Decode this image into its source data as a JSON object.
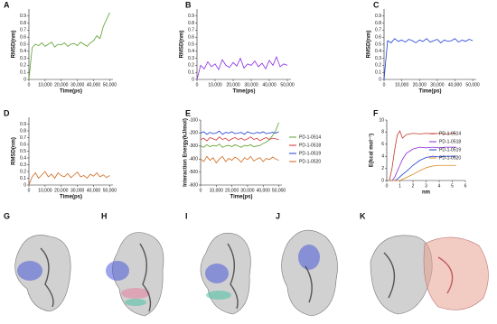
{
  "chart_data": [
    {
      "type": "line",
      "panel": "A",
      "xlabel": "Time(ps)",
      "ylabel": "RMSD(nm)",
      "color": "#5aa02c",
      "x": [
        0,
        2000,
        4000,
        6000,
        8000,
        10000,
        12000,
        14000,
        16000,
        18000,
        20000,
        22000,
        24000,
        26000,
        28000,
        30000,
        32000,
        34000,
        36000,
        38000,
        40000,
        42000,
        44000,
        46000,
        48000,
        50000
      ],
      "values": [
        0,
        0.45,
        0.5,
        0.48,
        0.52,
        0.47,
        0.5,
        0.53,
        0.46,
        0.5,
        0.49,
        0.52,
        0.47,
        0.5,
        0.51,
        0.48,
        0.53,
        0.5,
        0.47,
        0.52,
        0.55,
        0.62,
        0.58,
        0.75,
        0.85,
        0.95
      ],
      "xlim": [
        0,
        52000
      ],
      "xticks": [
        0,
        {
          "value": 10000,
          "label": "10,000"
        },
        {
          "value": 20000,
          "label": "20,000"
        },
        {
          "value": 30000,
          "label": "30,000"
        },
        {
          "value": 40000,
          "label": "40,000"
        },
        {
          "value": 50000,
          "label": "50,000"
        }
      ],
      "ylim": [
        0,
        1
      ],
      "yticks": [
        0,
        0.1,
        0.2,
        0.3,
        0.4,
        0.5,
        0.6,
        0.7,
        0.8,
        0.9
      ]
    },
    {
      "type": "line",
      "panel": "B",
      "xlabel": "Time(ps)",
      "ylabel": "RMSD(nm)",
      "color": "#8a2be2",
      "x": [
        0,
        2000,
        4000,
        6000,
        8000,
        10000,
        12000,
        14000,
        16000,
        18000,
        20000,
        22000,
        24000,
        26000,
        28000,
        30000,
        32000,
        34000,
        36000,
        38000,
        40000,
        42000,
        44000,
        46000,
        48000,
        50000
      ],
      "values": [
        0,
        0.2,
        0.15,
        0.25,
        0.18,
        0.22,
        0.14,
        0.28,
        0.2,
        0.17,
        0.24,
        0.19,
        0.3,
        0.16,
        0.22,
        0.2,
        0.26,
        0.18,
        0.23,
        0.15,
        0.27,
        0.2,
        0.32,
        0.18,
        0.22,
        0.2
      ],
      "xlim": [
        0,
        52000
      ],
      "xticks": [
        0,
        {
          "value": 10000,
          "label": "10,000"
        },
        {
          "value": 20000,
          "label": "20,000"
        },
        {
          "value": 30000,
          "label": "30,000"
        },
        {
          "value": 40000,
          "label": "40,000"
        },
        {
          "value": 50000,
          "label": "50,000"
        }
      ],
      "ylim": [
        0,
        1
      ],
      "yticks": [
        0,
        0.1,
        0.2,
        0.3,
        0.4,
        0.5,
        0.6,
        0.7,
        0.8,
        0.9
      ]
    },
    {
      "type": "line",
      "panel": "C",
      "xlabel": "Time(ps)",
      "ylabel": "RMSD(nm)",
      "color": "#1f3fd6",
      "x": [
        0,
        2000,
        4000,
        6000,
        8000,
        10000,
        12000,
        14000,
        16000,
        18000,
        20000,
        22000,
        24000,
        26000,
        28000,
        30000,
        32000,
        34000,
        36000,
        38000,
        40000,
        42000,
        44000,
        46000,
        48000,
        50000
      ],
      "values": [
        0,
        0.55,
        0.52,
        0.58,
        0.54,
        0.56,
        0.53,
        0.57,
        0.55,
        0.52,
        0.56,
        0.54,
        0.58,
        0.53,
        0.55,
        0.57,
        0.52,
        0.56,
        0.54,
        0.55,
        0.58,
        0.53,
        0.56,
        0.54,
        0.57,
        0.55
      ],
      "xlim": [
        0,
        52000
      ],
      "xticks": [
        0,
        {
          "value": 10000,
          "label": "10,000"
        },
        {
          "value": 20000,
          "label": "20,000"
        },
        {
          "value": 30000,
          "label": "30,000"
        },
        {
          "value": 40000,
          "label": "40,000"
        },
        {
          "value": 50000,
          "label": "50,000"
        }
      ],
      "ylim": [
        0,
        1
      ],
      "yticks": [
        0,
        0.1,
        0.2,
        0.3,
        0.4,
        0.5,
        0.6,
        0.7,
        0.8,
        0.9
      ]
    },
    {
      "type": "line",
      "panel": "D",
      "xlabel": "Time(ps)",
      "ylabel": "RMSD(nm)",
      "color": "#d2691e",
      "x": [
        0,
        2000,
        4000,
        6000,
        8000,
        10000,
        12000,
        14000,
        16000,
        18000,
        20000,
        22000,
        24000,
        26000,
        28000,
        30000,
        32000,
        34000,
        36000,
        38000,
        40000,
        42000,
        44000,
        46000,
        48000,
        50000
      ],
      "values": [
        0,
        0.12,
        0.18,
        0.1,
        0.15,
        0.2,
        0.12,
        0.16,
        0.1,
        0.18,
        0.14,
        0.12,
        0.17,
        0.11,
        0.15,
        0.19,
        0.12,
        0.14,
        0.1,
        0.16,
        0.13,
        0.18,
        0.12,
        0.15,
        0.11,
        0.14
      ],
      "xlim": [
        0,
        52000
      ],
      "xticks": [
        0,
        {
          "value": 10000,
          "label": "10,000"
        },
        {
          "value": 20000,
          "label": "20,000"
        },
        {
          "value": 30000,
          "label": "30,000"
        },
        {
          "value": 40000,
          "label": "40,000"
        },
        {
          "value": 50000,
          "label": "50,000"
        }
      ],
      "ylim": [
        0,
        1
      ],
      "yticks": [
        0,
        0.1,
        0.2,
        0.3,
        0.4,
        0.5,
        0.6,
        0.7,
        0.8,
        0.9
      ]
    },
    {
      "type": "line",
      "panel": "E",
      "xlabel": "Time(ps)",
      "ylabel": "Interaction Energy(kJ/mol)",
      "x": [
        0,
        2000,
        4000,
        6000,
        8000,
        10000,
        12000,
        14000,
        16000,
        18000,
        20000,
        22000,
        24000,
        26000,
        28000,
        30000,
        32000,
        34000,
        36000,
        38000,
        40000,
        42000,
        44000,
        46000,
        48000,
        50000
      ],
      "series": [
        {
          "name": "PD-1-0514",
          "color": "#5aa02c",
          "values": [
            -300,
            -310,
            -290,
            -305,
            -295,
            -300,
            -285,
            -310,
            -300,
            -295,
            -305,
            -290,
            -300,
            -310,
            -295,
            -300,
            -290,
            -305,
            -300,
            -295,
            -280,
            -270,
            -250,
            -220,
            -180,
            -120
          ]
        },
        {
          "name": "PD-1-0518",
          "color": "#d0312d",
          "values": [
            -250,
            -240,
            -260,
            -235,
            -245,
            -255,
            -230,
            -250,
            -240,
            -260,
            -245,
            -235,
            -250,
            -240,
            -255,
            -245,
            -230,
            -250,
            -240,
            -260,
            -245,
            -235,
            -250,
            -240,
            -245,
            -250
          ]
        },
        {
          "name": "PD-1-0519",
          "color": "#1f3fd6",
          "values": [
            -200,
            -190,
            -210,
            -195,
            -205,
            -200,
            -185,
            -210,
            -195,
            -200,
            -190,
            -205,
            -200,
            -195,
            -210,
            -190,
            -200,
            -205,
            -195,
            -200,
            -190,
            -205,
            -200,
            -195,
            -200,
            -190
          ]
        },
        {
          "name": "PD-1-0520",
          "color": "#d2691e",
          "values": [
            -400,
            -420,
            -380,
            -410,
            -390,
            -430,
            -400,
            -380,
            -420,
            -395,
            -410,
            -385,
            -400,
            -425,
            -390,
            -405,
            -380,
            -415,
            -400,
            -390,
            -420,
            -395,
            -405,
            -385,
            -400,
            -410
          ]
        }
      ],
      "xlim": [
        0,
        52000
      ],
      "xticks": [
        0,
        {
          "value": 10000,
          "label": "10,000"
        },
        {
          "value": 20000,
          "label": "20,000"
        },
        {
          "value": 30000,
          "label": "30,000"
        },
        {
          "value": 40000,
          "label": "40,000"
        },
        {
          "value": 50000,
          "label": "50,000"
        }
      ],
      "ylim": [
        -600,
        -100
      ],
      "yticks": [
        -600,
        -500,
        -400,
        -300,
        -200,
        -100
      ]
    },
    {
      "type": "line",
      "panel": "F",
      "xlabel": "nm",
      "ylabel": "E(kcal mol⁻¹)",
      "x": [
        0.2,
        0.4,
        0.6,
        0.8,
        1,
        1.2,
        1.5,
        2,
        2.5,
        3,
        3.5,
        4,
        4.5,
        5,
        5.3
      ],
      "series": [
        {
          "name": "PD-1-0514",
          "color": "#c0392b",
          "values": [
            0,
            2,
            5,
            7.5,
            8.2,
            7,
            7.6,
            7.8,
            7.7,
            7.8,
            7.7,
            7.8,
            7.7,
            7.8,
            7.8
          ]
        },
        {
          "name": "PD-1-0518",
          "color": "#8a2be2",
          "values": [
            0,
            0,
            0.5,
            1.5,
            2.5,
            3.5,
            4.5,
            5.2,
            5.5,
            5.4,
            5.5,
            5.4,
            5.5,
            5.5,
            5.5
          ]
        },
        {
          "name": "PD-1-0519",
          "color": "#1f3fd6",
          "values": [
            0,
            0,
            0,
            0.2,
            0.6,
            1,
            1.5,
            2.5,
            3.3,
            3.8,
            4,
            3.9,
            4,
            4,
            4
          ]
        },
        {
          "name": "PD-1-0520",
          "color": "#e08a1e",
          "values": [
            0,
            0,
            0,
            0,
            0,
            0.2,
            0.5,
            1,
            1.6,
            2.1,
            2.4,
            2.5,
            2.5,
            2.5,
            2.5
          ]
        }
      ],
      "xlim": [
        0,
        6
      ],
      "xticks": [
        0,
        1,
        2,
        3,
        4,
        5,
        6
      ],
      "ylim": [
        0,
        10
      ],
      "yticks": [
        0,
        2,
        4,
        6,
        8,
        10
      ]
    }
  ],
  "panels": [
    "G",
    "H",
    "I",
    "J",
    "K"
  ]
}
